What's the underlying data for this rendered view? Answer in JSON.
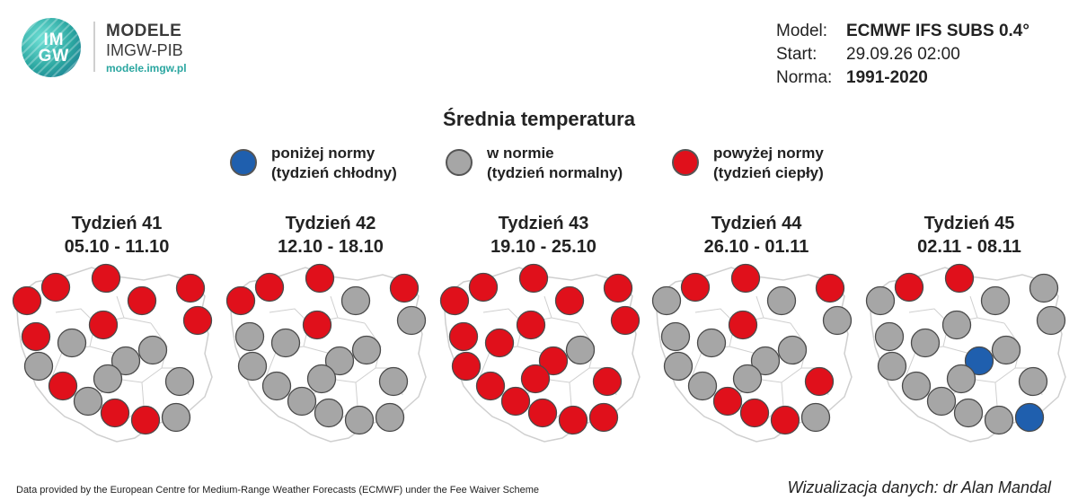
{
  "logo": {
    "text_line1": "IM",
    "text_line2": "GW",
    "name": "MODELE",
    "subtitle": "IMGW-PIB",
    "url": "modele.imgw.pl"
  },
  "model_info": {
    "model_label": "Model:",
    "model_value": "ECMWF IFS SUBS 0.4°",
    "start_label": "Start:",
    "start_value": "29.09.26 02:00",
    "norm_label": "Norma:",
    "norm_value": "1991-2020"
  },
  "title": "Średnia temperatura",
  "legend": [
    {
      "line1": "poniżej normy",
      "line2": "(tydzień chłodny)",
      "color": "#1f5fae"
    },
    {
      "line1": "w normie",
      "line2": "(tydzień normalny)",
      "color": "#a6a6a6"
    },
    {
      "line1": "powyżej normy",
      "line2": "(tydzień ciepły)",
      "color": "#e0101b"
    }
  ],
  "colors": {
    "below": "#1f5fae",
    "normal": "#a6a6a6",
    "above": "#e0101b",
    "map_fill": "#ffffff",
    "map_stroke": "#cfcfcf"
  },
  "weeks": [
    {
      "title": "Tydzień 41",
      "dates": "05.10 - 11.10",
      "states": [
        "above",
        "above",
        "above",
        "above",
        "above",
        "above",
        "above",
        "above",
        "normal",
        "normal",
        "normal",
        "normal",
        "above",
        "normal",
        "normal",
        "normal",
        "above",
        "above",
        "normal"
      ]
    },
    {
      "title": "Tydzień 42",
      "dates": "12.10 - 18.10",
      "states": [
        "above",
        "above",
        "above",
        "normal",
        "above",
        "normal",
        "above",
        "normal",
        "normal",
        "normal",
        "normal",
        "normal",
        "normal",
        "normal",
        "normal",
        "normal",
        "normal",
        "normal",
        "normal"
      ]
    },
    {
      "title": "Tydzień 43",
      "dates": "19.10 - 25.10",
      "states": [
        "above",
        "above",
        "above",
        "above",
        "above",
        "above",
        "above",
        "above",
        "above",
        "above",
        "normal",
        "above",
        "above",
        "above",
        "above",
        "above",
        "above",
        "above",
        "above"
      ]
    },
    {
      "title": "Tydzień 44",
      "dates": "26.10 - 01.11",
      "states": [
        "normal",
        "above",
        "above",
        "normal",
        "above",
        "normal",
        "above",
        "normal",
        "normal",
        "normal",
        "normal",
        "normal",
        "normal",
        "normal",
        "above",
        "above",
        "above",
        "above",
        "normal"
      ]
    },
    {
      "title": "Tydzień 45",
      "dates": "02.11 - 08.11",
      "states": [
        "normal",
        "above",
        "above",
        "normal",
        "normal",
        "normal",
        "normal",
        "normal",
        "normal",
        "below",
        "normal",
        "normal",
        "normal",
        "normal",
        "normal",
        "normal",
        "normal",
        "normal",
        "below"
      ]
    }
  ],
  "footer": {
    "left": "Data provided by the European Centre for Medium-Range Weather Forecasts (ECMWF) under the Fee Waiver Scheme",
    "right": "Wizualizacja danych: dr Alan Mandal"
  }
}
